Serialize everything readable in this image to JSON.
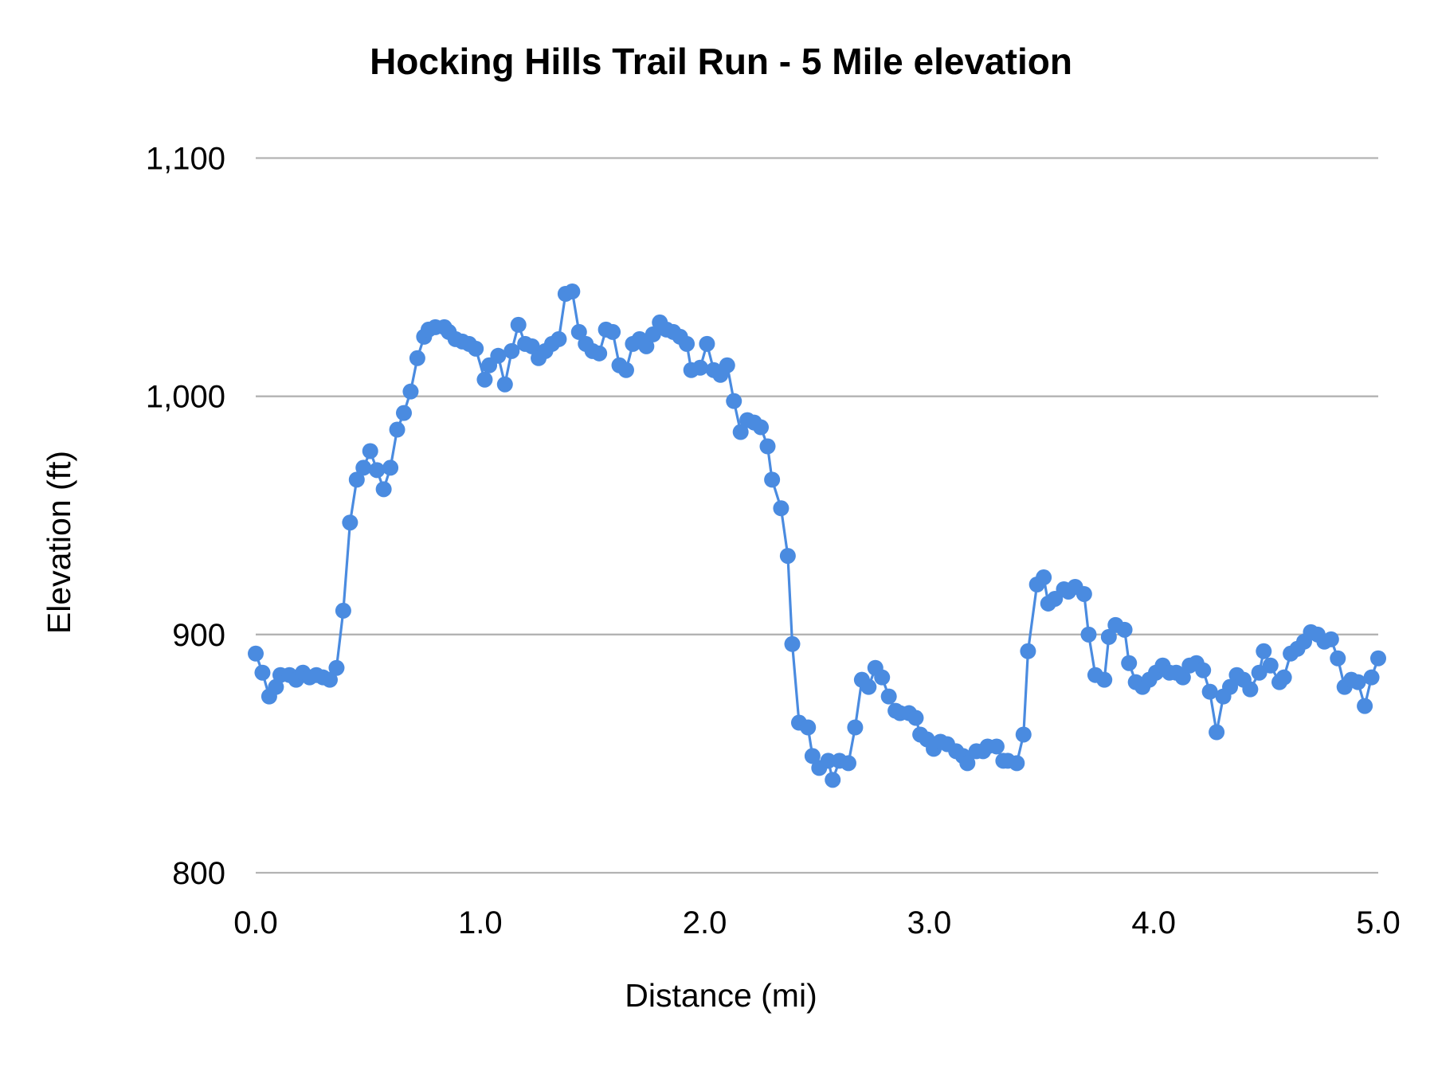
{
  "chart_data": {
    "type": "line",
    "title": "Hocking Hills Trail Run - 5 Mile elevation",
    "xlabel": "Distance (mi)",
    "ylabel": "Elevation (ft)",
    "xlim": [
      0,
      5
    ],
    "ylim": [
      800,
      1100
    ],
    "x_ticks": [
      "0.0",
      "1.0",
      "2.0",
      "3.0",
      "4.0",
      "5.0"
    ],
    "y_ticks": [
      "800",
      "900",
      "1,000",
      "1,100"
    ],
    "grid": "horizontal",
    "markers": true,
    "color": "#4a8be0",
    "gridline_color": "#b3b3b3",
    "series": [
      {
        "x": [
          0.0,
          0.03,
          0.06,
          0.09,
          0.11,
          0.15,
          0.18,
          0.21,
          0.24,
          0.27,
          0.3,
          0.33,
          0.36,
          0.39,
          0.42,
          0.45,
          0.48,
          0.51,
          0.54,
          0.57,
          0.6,
          0.63,
          0.66,
          0.69,
          0.72,
          0.75,
          0.77,
          0.8,
          0.84,
          0.86,
          0.89,
          0.92,
          0.95,
          0.98,
          1.02,
          1.04,
          1.08,
          1.11,
          1.14,
          1.17,
          1.2,
          1.23,
          1.26,
          1.29,
          1.32,
          1.35,
          1.38,
          1.41,
          1.44,
          1.47,
          1.5,
          1.53,
          1.56,
          1.59,
          1.62,
          1.65,
          1.68,
          1.71,
          1.74,
          1.77,
          1.8,
          1.83,
          1.86,
          1.89,
          1.92,
          1.94,
          1.98,
          2.01,
          2.04,
          2.07,
          2.1,
          2.13,
          2.16,
          2.19,
          2.22,
          2.25,
          2.28,
          2.3,
          2.34,
          2.37,
          2.39,
          2.42,
          2.46,
          2.48,
          2.51,
          2.55,
          2.57,
          2.6,
          2.64,
          2.67,
          2.7,
          2.73,
          2.76,
          2.79,
          2.82,
          2.85,
          2.87,
          2.91,
          2.94,
          2.96,
          2.99,
          3.02,
          3.05,
          3.08,
          3.12,
          3.15,
          3.17,
          3.21,
          3.24,
          3.26,
          3.3,
          3.33,
          3.35,
          3.39,
          3.42,
          3.44,
          3.48,
          3.51,
          3.53,
          3.56,
          3.6,
          3.62,
          3.65,
          3.69,
          3.71,
          3.74,
          3.78,
          3.8,
          3.83,
          3.87,
          3.89,
          3.92,
          3.95,
          3.98,
          4.01,
          4.04,
          4.07,
          4.1,
          4.13,
          4.16,
          4.19,
          4.22,
          4.25,
          4.28,
          4.31,
          4.34,
          4.37,
          4.4,
          4.43,
          4.47,
          4.49,
          4.52,
          4.56,
          4.58,
          4.61,
          4.64,
          4.67,
          4.7,
          4.73,
          4.76,
          4.79,
          4.82,
          4.85,
          4.88,
          4.91,
          4.94,
          4.97,
          5.0
        ],
        "y": [
          892,
          884,
          874,
          878,
          883,
          883,
          881,
          884,
          882,
          883,
          882,
          881,
          886,
          910,
          947,
          965,
          970,
          977,
          969,
          961,
          970,
          986,
          993,
          1002,
          1016,
          1025,
          1028,
          1029,
          1029,
          1027,
          1024,
          1023,
          1022,
          1020,
          1007,
          1013,
          1017,
          1005,
          1019,
          1030,
          1022,
          1021,
          1016,
          1019,
          1022,
          1024,
          1043,
          1044,
          1027,
          1022,
          1019,
          1018,
          1028,
          1027,
          1013,
          1011,
          1022,
          1024,
          1021,
          1026,
          1031,
          1028,
          1027,
          1025,
          1022,
          1011,
          1012,
          1022,
          1011,
          1009,
          1013,
          998,
          985,
          990,
          989,
          987,
          979,
          965,
          953,
          933,
          896,
          863,
          861,
          849,
          844,
          847,
          839,
          847,
          846,
          861,
          881,
          878,
          886,
          882,
          874,
          868,
          867,
          867,
          865,
          858,
          856,
          852,
          855,
          854,
          851,
          849,
          846,
          851,
          851,
          853,
          853,
          847,
          847,
          846,
          858,
          893,
          921,
          924,
          913,
          915,
          919,
          918,
          920,
          917,
          900,
          883,
          881,
          899,
          904,
          902,
          888,
          880,
          878,
          881,
          884,
          887,
          884,
          884,
          882,
          887,
          888,
          885,
          876,
          859,
          874,
          878,
          883,
          881,
          877,
          884,
          893,
          887,
          880,
          882,
          892,
          894,
          897,
          901,
          900,
          897,
          898,
          890,
          878,
          881,
          880,
          870,
          882,
          890
        ]
      }
    ]
  }
}
